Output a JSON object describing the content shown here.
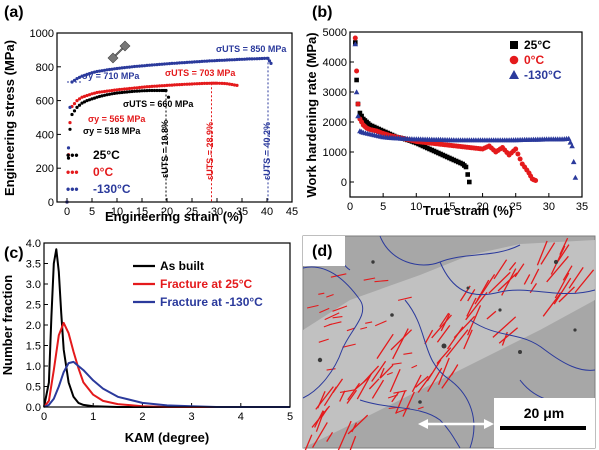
{
  "panels": {
    "a": {
      "label": "(a)",
      "xlabel": "Engineering strain (%)",
      "ylabel": "Engineering stress (MPa)",
      "xlim": [
        -2,
        45
      ],
      "ylim": [
        0,
        1000
      ],
      "xticks": [
        "0",
        "5",
        "10",
        "15",
        "20",
        "25",
        "30",
        "35",
        "40",
        "45"
      ],
      "yticks": [
        "0",
        "200",
        "400",
        "600",
        "800",
        "1000"
      ],
      "legend": [
        "25°C",
        "0°C",
        "-130°C"
      ],
      "annotations": {
        "uts130": "σUTS = 850 MPa",
        "y130": "σy = 710 MPa",
        "uts0": "σUTS = 703 MPa",
        "y0": "σy = 565 MPa",
        "uts25": "σUTS = 660 MPa",
        "y25": "σy = 518 MPa",
        "eps25": "εUTS = 19.8%",
        "eps0": "εUTS = 28.9%",
        "eps130": "εUTS = 40.2%"
      }
    },
    "b": {
      "label": "(b)",
      "xlabel": "True strain (%)",
      "ylabel": "Work hardening rate (MPa)",
      "xticks": [
        "0",
        "5",
        "10",
        "15",
        "20",
        "25",
        "30",
        "35"
      ],
      "yticks": [
        "0",
        "1000",
        "2000",
        "3000",
        "4000",
        "5000"
      ],
      "legend": [
        "25°C",
        "0°C",
        "-130°C"
      ]
    },
    "c": {
      "label": "(c)",
      "xlabel": "KAM (degree)",
      "ylabel": "Number fraction",
      "xticks": [
        "0",
        "1",
        "2",
        "3",
        "4",
        "5"
      ],
      "yticks": [
        "0.0",
        "0.5",
        "1.0",
        "1.5",
        "2.0",
        "2.5",
        "3.0",
        "3.5",
        "4.0"
      ],
      "legend": [
        "As built",
        "Fracture at 25°C",
        "Fracture at -130°C"
      ]
    },
    "d": {
      "label": "(d)",
      "scale_bar": "20 μm"
    }
  },
  "colors": {
    "c25": "#000000",
    "c0": "#e41a1c",
    "c130": "#2b3a9c"
  },
  "chart_data": [
    {
      "type": "scatter",
      "title": "",
      "xlabel": "Engineering strain (%)",
      "ylabel": "Engineering stress (MPa)",
      "xlim": [
        -2,
        45
      ],
      "ylim": [
        0,
        1000
      ],
      "series": [
        {
          "name": "25°C",
          "x": [
            0,
            0.3,
            0.6,
            1,
            2,
            3,
            4,
            5,
            6,
            7,
            8,
            9,
            10,
            11,
            12,
            13,
            14,
            15,
            16,
            17,
            18,
            19,
            19.8,
            20.3
          ],
          "y": [
            0,
            260,
            430,
            518,
            560,
            585,
            600,
            610,
            620,
            628,
            635,
            640,
            645,
            648,
            651,
            654,
            656,
            658,
            659,
            660,
            660,
            660,
            660,
            620
          ]
        },
        {
          "name": "0°C",
          "x": [
            0,
            0.3,
            0.6,
            1,
            2,
            3,
            4,
            5,
            6,
            8,
            10,
            12,
            14,
            16,
            18,
            20,
            22,
            24,
            26,
            28,
            28.9,
            30,
            31,
            32,
            33,
            34
          ],
          "y": [
            0,
            280,
            470,
            565,
            600,
            620,
            630,
            640,
            648,
            656,
            664,
            670,
            676,
            682,
            686,
            690,
            694,
            697,
            700,
            702,
            703,
            703,
            702,
            700,
            695,
            690
          ]
        },
        {
          "name": "-130°C",
          "x": [
            0,
            0.3,
            0.6,
            1,
            2,
            3,
            4,
            5,
            6,
            8,
            10,
            12,
            14,
            16,
            18,
            20,
            22,
            24,
            26,
            28,
            30,
            32,
            34,
            36,
            38,
            40,
            40.2,
            40.8
          ],
          "y": [
            0,
            320,
            560,
            710,
            730,
            745,
            755,
            765,
            772,
            782,
            790,
            797,
            803,
            808,
            813,
            818,
            822,
            826,
            830,
            834,
            837,
            840,
            843,
            846,
            848,
            850,
            850,
            820
          ]
        }
      ]
    },
    {
      "type": "scatter",
      "title": "",
      "xlabel": "True strain (%)",
      "ylabel": "Work hardening rate (MPa)",
      "xlim": [
        0,
        35
      ],
      "ylim": [
        -500,
        5000
      ],
      "series": [
        {
          "name": "25°C",
          "x": [
            0.8,
            1,
            1.2,
            1.5,
            2,
            2.5,
            3,
            4,
            5,
            6,
            7,
            8,
            9,
            10,
            11,
            12,
            13,
            14,
            15,
            16,
            17,
            17.5,
            18
          ],
          "y": [
            4650,
            3400,
            2600,
            2300,
            2100,
            2000,
            1900,
            1800,
            1700,
            1600,
            1500,
            1450,
            1380,
            1300,
            1200,
            1100,
            1000,
            900,
            800,
            700,
            600,
            500,
            0
          ]
        },
        {
          "name": "0°C",
          "x": [
            0.8,
            1,
            1.2,
            1.5,
            2,
            2.5,
            3,
            4,
            5,
            6,
            8,
            10,
            12,
            14,
            16,
            18,
            20,
            21,
            22,
            23,
            24,
            25,
            26,
            27,
            27.5,
            28
          ],
          "y": [
            4800,
            3700,
            2600,
            2100,
            1900,
            1800,
            1750,
            1700,
            1620,
            1550,
            1450,
            1350,
            1300,
            1250,
            1200,
            1150,
            1100,
            1200,
            1000,
            1150,
            900,
            1100,
            600,
            300,
            100,
            50
          ]
        },
        {
          "name": "-130°C",
          "x": [
            0.8,
            1,
            1.2,
            1.5,
            2,
            3,
            4,
            5,
            6,
            8,
            10,
            12,
            14,
            16,
            18,
            20,
            22,
            24,
            26,
            28,
            30,
            32,
            33,
            33.5,
            34
          ],
          "y": [
            4600,
            3000,
            2200,
            1700,
            1650,
            1600,
            1550,
            1500,
            1480,
            1450,
            1430,
            1420,
            1410,
            1400,
            1400,
            1400,
            1400,
            1400,
            1410,
            1420,
            1430,
            1430,
            1450,
            1200,
            150
          ]
        }
      ]
    },
    {
      "type": "line",
      "title": "",
      "xlabel": "KAM (degree)",
      "ylabel": "Number fraction",
      "xlim": [
        0,
        5
      ],
      "ylim": [
        0,
        4
      ],
      "series": [
        {
          "name": "As built",
          "x": [
            0,
            0.1,
            0.15,
            0.2,
            0.25,
            0.3,
            0.35,
            0.4,
            0.5,
            0.6,
            0.7,
            0.8,
            1,
            1.5,
            2,
            5
          ],
          "y": [
            0,
            0.6,
            2.2,
            3.5,
            3.85,
            3.3,
            2.3,
            1.4,
            0.6,
            0.25,
            0.1,
            0.05,
            0.02,
            0,
            0,
            0
          ]
        },
        {
          "name": "Fracture at 25°C",
          "x": [
            0,
            0.1,
            0.2,
            0.3,
            0.4,
            0.5,
            0.6,
            0.7,
            0.8,
            1,
            1.2,
            1.5,
            2,
            2.5,
            5
          ],
          "y": [
            0,
            0.15,
            0.9,
            1.75,
            2.05,
            1.8,
            1.35,
            0.95,
            0.6,
            0.3,
            0.15,
            0.07,
            0.02,
            0,
            0
          ]
        },
        {
          "name": "Fracture at -130°C",
          "x": [
            0,
            0.1,
            0.2,
            0.3,
            0.4,
            0.5,
            0.6,
            0.7,
            0.8,
            1,
            1.2,
            1.5,
            2,
            2.5,
            3,
            3.5,
            5
          ],
          "y": [
            0,
            0.05,
            0.2,
            0.5,
            0.85,
            1.07,
            1.1,
            1.0,
            0.9,
            0.65,
            0.45,
            0.25,
            0.1,
            0.04,
            0.02,
            0,
            0
          ]
        }
      ]
    }
  ]
}
